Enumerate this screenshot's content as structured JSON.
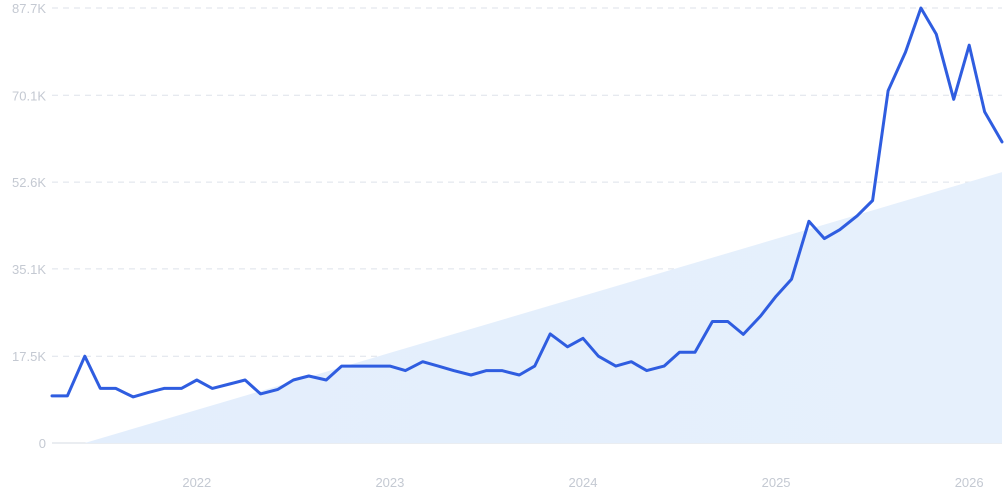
{
  "chart_data": {
    "type": "line",
    "title": "",
    "xlabel": "",
    "ylabel": "",
    "ylim": [
      0,
      87700
    ],
    "xlim": [
      2021.25,
      2026.17
    ],
    "y_ticks": [
      0,
      17500,
      35100,
      52600,
      70100,
      87700
    ],
    "y_tick_labels": [
      "0",
      "17.5K",
      "35.1K",
      "52.6K",
      "70.1K",
      "87.7K"
    ],
    "x_ticks": [
      2022,
      2023,
      2024,
      2025,
      2026
    ],
    "x_tick_labels": [
      "2022",
      "2023",
      "2024",
      "2025",
      "2026"
    ],
    "grid": true,
    "legend": "none",
    "colors": {
      "line": "#2f5de0",
      "trend_fill": "#dde9fb",
      "grid": "#dde2ea",
      "ticks": "#c4c9d2"
    },
    "series": [
      {
        "type": "line",
        "x": [
          2021.25,
          2021.33,
          2021.42,
          2021.5,
          2021.58,
          2021.67,
          2021.75,
          2021.83,
          2021.92,
          2022.0,
          2022.08,
          2022.17,
          2022.25,
          2022.33,
          2022.42,
          2022.5,
          2022.58,
          2022.67,
          2022.75,
          2022.83,
          2022.92,
          2023.0,
          2023.08,
          2023.17,
          2023.25,
          2023.33,
          2023.42,
          2023.5,
          2023.58,
          2023.67,
          2023.75,
          2023.83,
          2023.92,
          2024.0,
          2024.08,
          2024.17,
          2024.25,
          2024.33,
          2024.42,
          2024.5,
          2024.58,
          2024.67,
          2024.75,
          2024.83,
          2024.92,
          2025.0,
          2025.08,
          2025.17,
          2025.25,
          2025.33,
          2025.42,
          2025.5,
          2025.58,
          2025.67,
          2025.75,
          2025.83,
          2025.92,
          2026.0,
          2026.08,
          2026.17
        ],
        "values": [
          9500,
          9500,
          17500,
          11000,
          11000,
          9300,
          10200,
          11000,
          11000,
          12700,
          11000,
          11900,
          12700,
          9900,
          10800,
          12700,
          13500,
          12700,
          15500,
          15500,
          15500,
          15500,
          14600,
          16400,
          15500,
          14600,
          13700,
          14600,
          14600,
          13700,
          15500,
          22000,
          19400,
          21100,
          17500,
          15500,
          16400,
          14600,
          15500,
          18300,
          18300,
          24500,
          24500,
          21900,
          25600,
          29600,
          33000,
          44700,
          41200,
          43000,
          45800,
          48900,
          71000,
          78800,
          87700,
          82400,
          69300,
          80200,
          66800,
          60700
        ]
      },
      {
        "type": "area",
        "x": [
          2021.42,
          2026.17
        ],
        "values": [
          0,
          54600
        ]
      }
    ]
  }
}
